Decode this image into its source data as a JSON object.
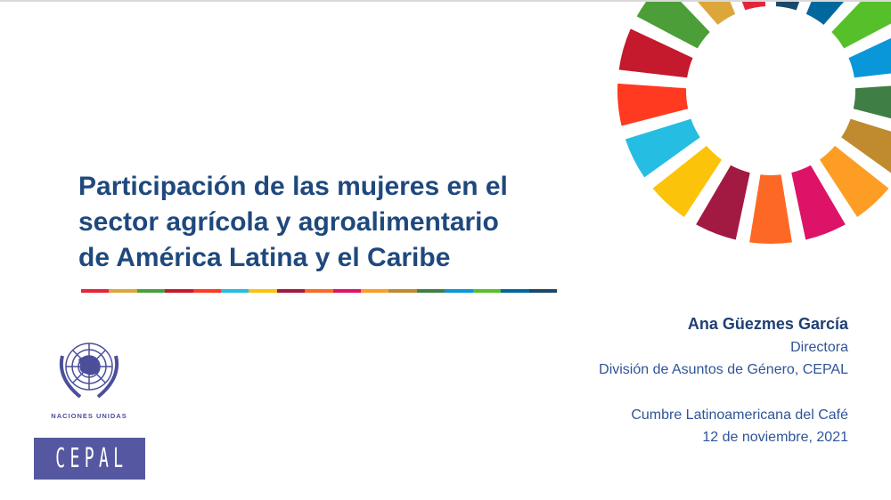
{
  "title": {
    "lines": [
      "Participación de las mujeres en el",
      "sector agrícola y agroalimentario",
      "de América Latina y el Caribe"
    ],
    "color": "#1f497d"
  },
  "sdg_colors": [
    "#e5243b",
    "#dda63a",
    "#4c9f38",
    "#c5192d",
    "#ff3a21",
    "#26bde2",
    "#fcc30b",
    "#a21942",
    "#fd6925",
    "#dd1367",
    "#fd9d24",
    "#bf8b2e",
    "#3f7e44",
    "#0a97d9",
    "#56c02b",
    "#00689d",
    "#19486a"
  ],
  "presenter": {
    "name": "Ana Güezmes García",
    "role": "Directora",
    "division": "División de Asuntos de Género, CEPAL",
    "event": "Cumbre Latinoamericana del Café",
    "date": "12 de noviembre, 2021"
  },
  "logos": {
    "un_text": "Naciones Unidas",
    "cepal_text": "CEPAL",
    "cepal_color": "#5558a0"
  }
}
